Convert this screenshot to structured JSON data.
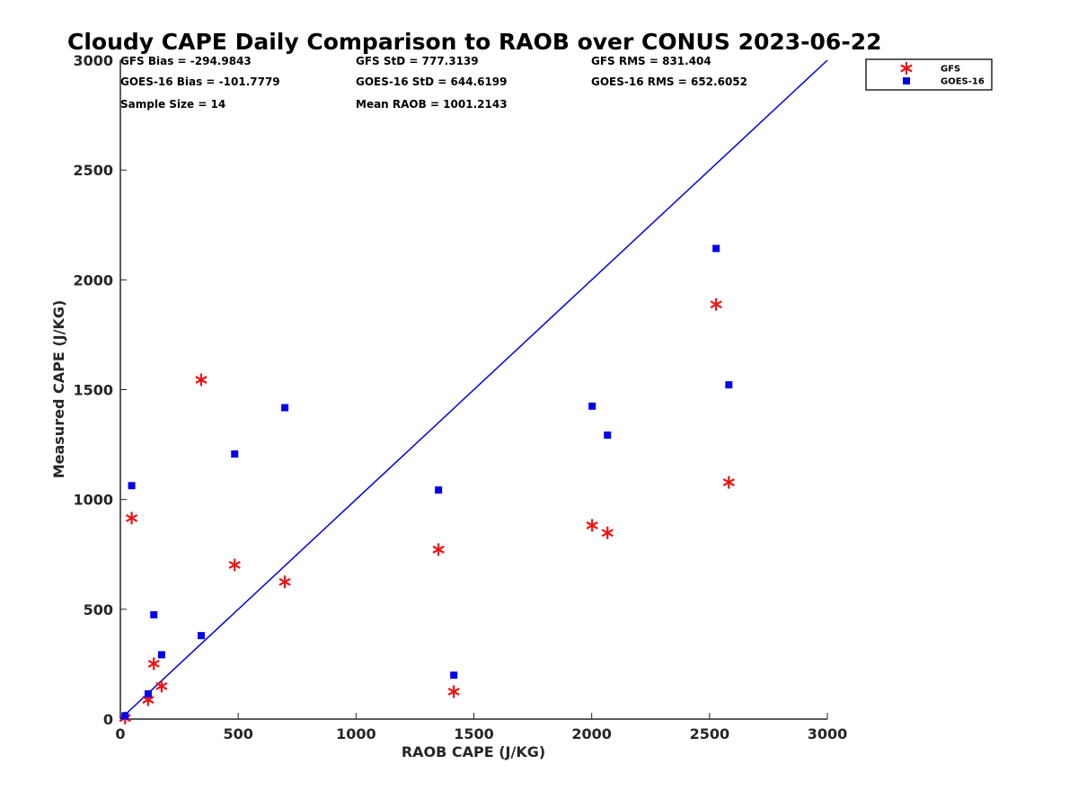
{
  "chart_data": {
    "type": "scatter",
    "title": "Cloudy CAPE Daily Comparison to RAOB over CONUS 2023-06-22",
    "xlabel": "RAOB CAPE (J/KG)",
    "ylabel": "Measured CAPE (J/KG)",
    "xlim": [
      0,
      3000
    ],
    "ylim": [
      0,
      3000
    ],
    "xticks": [
      0,
      500,
      1000,
      1500,
      2000,
      2500,
      3000
    ],
    "yticks": [
      0,
      500,
      1000,
      1500,
      2000,
      2500,
      3000
    ],
    "grid": false,
    "legend_position": "outside-top-right",
    "reference_line": {
      "x": [
        0,
        3000
      ],
      "y": [
        0,
        3000
      ],
      "color": "#0000dd"
    },
    "series": [
      {
        "name": "GFS",
        "marker": "asterisk",
        "color": "#ee1111",
        "points": [
          {
            "x": 20,
            "y": 5
          },
          {
            "x": 48,
            "y": 915
          },
          {
            "x": 118,
            "y": 88
          },
          {
            "x": 142,
            "y": 252
          },
          {
            "x": 175,
            "y": 150
          },
          {
            "x": 343,
            "y": 1545
          },
          {
            "x": 485,
            "y": 702
          },
          {
            "x": 698,
            "y": 625
          },
          {
            "x": 1350,
            "y": 772
          },
          {
            "x": 1415,
            "y": 125
          },
          {
            "x": 2002,
            "y": 882
          },
          {
            "x": 2067,
            "y": 848
          },
          {
            "x": 2528,
            "y": 1888
          },
          {
            "x": 2582,
            "y": 1078
          }
        ]
      },
      {
        "name": "GOES-16",
        "marker": "square",
        "color": "#0000ee",
        "points": [
          {
            "x": 20,
            "y": 15
          },
          {
            "x": 48,
            "y": 1063
          },
          {
            "x": 118,
            "y": 115
          },
          {
            "x": 142,
            "y": 475
          },
          {
            "x": 175,
            "y": 293
          },
          {
            "x": 343,
            "y": 380
          },
          {
            "x": 485,
            "y": 1207
          },
          {
            "x": 698,
            "y": 1418
          },
          {
            "x": 1350,
            "y": 1043
          },
          {
            "x": 1415,
            "y": 200
          },
          {
            "x": 2002,
            "y": 1425
          },
          {
            "x": 2067,
            "y": 1293
          },
          {
            "x": 2528,
            "y": 2143
          },
          {
            "x": 2582,
            "y": 1522
          }
        ]
      }
    ],
    "annotations": [
      [
        "GFS Bias = -294.9843",
        "GFS StD = 777.3139",
        "GFS RMS = 831.404"
      ],
      [
        "GOES-16 Bias = -101.7779",
        "GOES-16 StD = 644.6199",
        "GOES-16 RMS = 652.6052"
      ],
      [
        "Sample Size = 14",
        "Mean RAOB = 1001.2143"
      ]
    ]
  }
}
